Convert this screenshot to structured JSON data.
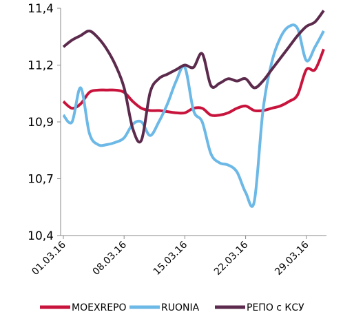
{
  "chart_data": {
    "type": "line",
    "categories": [
      "01.03.16",
      null,
      null,
      null,
      null,
      null,
      null,
      "08.03.16",
      null,
      null,
      null,
      null,
      null,
      null,
      "15.03.16",
      null,
      null,
      null,
      null,
      null,
      null,
      "22.03.16",
      null,
      null,
      null,
      null,
      null,
      null,
      "29.03.16",
      null,
      null
    ],
    "series": [
      {
        "name": "MOEXREPO",
        "color": "#c8143c",
        "values": [
          10.99,
          10.96,
          10.98,
          11.03,
          11.04,
          11.04,
          11.04,
          11.03,
          10.99,
          10.96,
          10.95,
          10.95,
          10.945,
          10.94,
          10.94,
          10.96,
          10.96,
          10.93,
          10.93,
          10.94,
          10.96,
          10.97,
          10.95,
          10.95,
          10.96,
          10.97,
          10.99,
          11.02,
          11.13,
          11.13,
          11.22
        ]
      },
      {
        "name": "RUONIA",
        "color": "#6cb8e6",
        "values": [
          10.93,
          10.9,
          11.05,
          10.85,
          10.8,
          10.8,
          10.81,
          10.83,
          10.89,
          10.9,
          10.84,
          10.9,
          10.98,
          11.08,
          11.14,
          10.95,
          10.9,
          10.76,
          10.72,
          10.71,
          10.68,
          10.59,
          10.55,
          10.95,
          11.16,
          11.27,
          11.32,
          11.31,
          11.17,
          11.23,
          11.3
        ]
      },
      {
        "name": "РЕПО с КСУ",
        "color": "#5c2a4c",
        "values": [
          11.23,
          11.26,
          11.28,
          11.3,
          11.27,
          11.22,
          11.15,
          11.05,
          10.87,
          10.82,
          11.03,
          11.09,
          11.11,
          11.13,
          11.15,
          11.14,
          11.2,
          11.06,
          11.07,
          11.09,
          11.08,
          11.09,
          11.05,
          11.08,
          11.13,
          11.18,
          11.23,
          11.28,
          11.32,
          11.34,
          11.39
        ]
      }
    ],
    "ylim": [
      10.4,
      11.4
    ],
    "yticks": [
      {
        "value": 10.4,
        "label": "10,4"
      },
      {
        "value": 10.65,
        "label": "10,7"
      },
      {
        "value": 10.9,
        "label": "10,9"
      },
      {
        "value": 11.15,
        "label": "11,2"
      },
      {
        "value": 11.4,
        "label": "11,4"
      }
    ]
  }
}
